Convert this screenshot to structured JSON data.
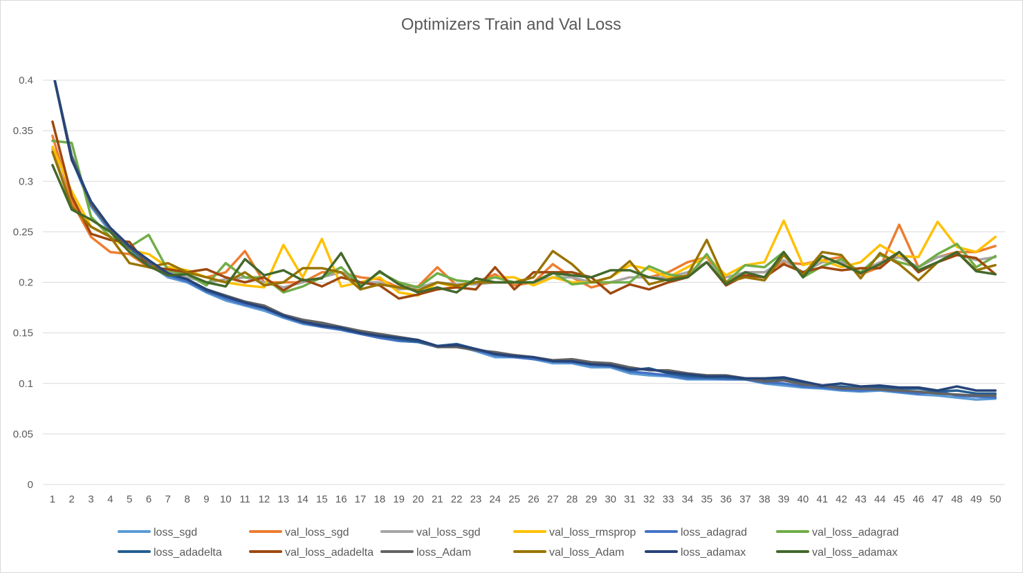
{
  "chart_data": {
    "type": "line",
    "title": "Optimizers Train and Val Loss",
    "xlabel": "",
    "ylabel": "",
    "x": [
      1,
      2,
      3,
      4,
      5,
      6,
      7,
      8,
      9,
      10,
      11,
      12,
      13,
      14,
      15,
      16,
      17,
      18,
      19,
      20,
      21,
      22,
      23,
      24,
      25,
      26,
      27,
      28,
      29,
      30,
      31,
      32,
      33,
      34,
      35,
      36,
      37,
      38,
      39,
      40,
      41,
      42,
      43,
      44,
      45,
      46,
      47,
      48,
      49,
      50
    ],
    "ylim": [
      0,
      0.4
    ],
    "yticks": [
      "0",
      "0.05",
      "0.1",
      "0.15",
      "0.2",
      "0.25",
      "0.3",
      "0.35",
      "0.4"
    ],
    "grid": true,
    "legend_position": "bottom",
    "series": [
      {
        "name": "loss_sgd",
        "color": "#5b9bd5",
        "values": [
          0.41,
          0.322,
          0.275,
          0.25,
          0.232,
          0.218,
          0.205,
          0.2,
          0.19,
          0.182,
          0.177,
          0.172,
          0.165,
          0.159,
          0.156,
          0.153,
          0.149,
          0.146,
          0.142,
          0.141,
          0.137,
          0.137,
          0.132,
          0.126,
          0.126,
          0.124,
          0.12,
          0.12,
          0.116,
          0.116,
          0.11,
          0.108,
          0.107,
          0.104,
          0.104,
          0.104,
          0.104,
          0.1,
          0.098,
          0.096,
          0.095,
          0.093,
          0.092,
          0.093,
          0.091,
          0.089,
          0.088,
          0.086,
          0.084,
          0.085
        ]
      },
      {
        "name": "val_loss_sgd",
        "color": "#ed7d31",
        "values": [
          0.345,
          0.28,
          0.245,
          0.23,
          0.228,
          0.215,
          0.21,
          0.21,
          0.205,
          0.21,
          0.231,
          0.2,
          0.2,
          0.2,
          0.21,
          0.21,
          0.205,
          0.203,
          0.195,
          0.196,
          0.215,
          0.197,
          0.2,
          0.208,
          0.197,
          0.2,
          0.218,
          0.205,
          0.195,
          0.2,
          0.205,
          0.205,
          0.21,
          0.22,
          0.225,
          0.2,
          0.21,
          0.21,
          0.22,
          0.218,
          0.222,
          0.225,
          0.208,
          0.215,
          0.257,
          0.215,
          0.225,
          0.23,
          0.23,
          0.236
        ]
      },
      {
        "name": "val_loss_sgd",
        "color": "#a5a5a5",
        "values": [
          0.332,
          0.275,
          0.255,
          0.245,
          0.235,
          0.218,
          0.21,
          0.205,
          0.2,
          0.203,
          0.205,
          0.2,
          0.195,
          0.2,
          0.205,
          0.21,
          0.2,
          0.2,
          0.193,
          0.195,
          0.2,
          0.198,
          0.198,
          0.2,
          0.2,
          0.2,
          0.205,
          0.205,
          0.2,
          0.2,
          0.205,
          0.205,
          0.205,
          0.21,
          0.22,
          0.205,
          0.21,
          0.21,
          0.222,
          0.21,
          0.22,
          0.22,
          0.21,
          0.22,
          0.225,
          0.215,
          0.225,
          0.228,
          0.222,
          0.225
        ]
      },
      {
        "name": "val_loss_rmsprop",
        "color": "#ffc000",
        "values": [
          0.334,
          0.29,
          0.255,
          0.245,
          0.232,
          0.228,
          0.215,
          0.212,
          0.205,
          0.2,
          0.197,
          0.195,
          0.237,
          0.205,
          0.243,
          0.196,
          0.2,
          0.205,
          0.19,
          0.187,
          0.2,
          0.195,
          0.2,
          0.205,
          0.205,
          0.197,
          0.205,
          0.2,
          0.2,
          0.205,
          0.217,
          0.213,
          0.205,
          0.215,
          0.226,
          0.207,
          0.217,
          0.22,
          0.261,
          0.217,
          0.222,
          0.215,
          0.22,
          0.237,
          0.226,
          0.225,
          0.26,
          0.235,
          0.23,
          0.245
        ]
      },
      {
        "name": "loss_adagrad",
        "color": "#4472c4",
        "values": [
          0.41,
          0.323,
          0.277,
          0.252,
          0.234,
          0.219,
          0.207,
          0.201,
          0.191,
          0.184,
          0.178,
          0.174,
          0.166,
          0.16,
          0.156,
          0.153,
          0.149,
          0.145,
          0.142,
          0.141,
          0.136,
          0.137,
          0.133,
          0.128,
          0.126,
          0.124,
          0.122,
          0.121,
          0.118,
          0.117,
          0.112,
          0.11,
          0.108,
          0.105,
          0.105,
          0.104,
          0.104,
          0.101,
          0.1,
          0.097,
          0.096,
          0.094,
          0.093,
          0.094,
          0.092,
          0.09,
          0.092,
          0.088,
          0.087,
          0.086
        ]
      },
      {
        "name": "val_loss_adagrad",
        "color": "#70ad47",
        "values": [
          0.34,
          0.338,
          0.265,
          0.245,
          0.235,
          0.247,
          0.212,
          0.208,
          0.197,
          0.219,
          0.205,
          0.205,
          0.19,
          0.196,
          0.205,
          0.215,
          0.197,
          0.21,
          0.2,
          0.195,
          0.209,
          0.202,
          0.2,
          0.205,
          0.2,
          0.2,
          0.21,
          0.198,
          0.2,
          0.2,
          0.2,
          0.216,
          0.208,
          0.205,
          0.228,
          0.2,
          0.217,
          0.215,
          0.23,
          0.205,
          0.216,
          0.223,
          0.21,
          0.227,
          0.22,
          0.215,
          0.228,
          0.238,
          0.215,
          0.226
        ]
      },
      {
        "name": "loss_adadelta",
        "color": "#255e91",
        "values": [
          0.41,
          0.325,
          0.278,
          0.253,
          0.234,
          0.22,
          0.208,
          0.203,
          0.192,
          0.186,
          0.18,
          0.176,
          0.168,
          0.161,
          0.158,
          0.154,
          0.15,
          0.147,
          0.144,
          0.141,
          0.137,
          0.139,
          0.134,
          0.13,
          0.128,
          0.126,
          0.122,
          0.122,
          0.119,
          0.118,
          0.113,
          0.115,
          0.11,
          0.107,
          0.106,
          0.106,
          0.104,
          0.104,
          0.105,
          0.1,
          0.097,
          0.097,
          0.095,
          0.096,
          0.095,
          0.095,
          0.092,
          0.093,
          0.09,
          0.09
        ]
      },
      {
        "name": "val_loss_adadelta",
        "color": "#9e480e",
        "values": [
          0.359,
          0.285,
          0.248,
          0.242,
          0.24,
          0.215,
          0.213,
          0.21,
          0.213,
          0.205,
          0.2,
          0.205,
          0.192,
          0.203,
          0.196,
          0.205,
          0.2,
          0.197,
          0.184,
          0.188,
          0.193,
          0.195,
          0.193,
          0.215,
          0.193,
          0.21,
          0.21,
          0.21,
          0.205,
          0.189,
          0.198,
          0.193,
          0.2,
          0.205,
          0.22,
          0.197,
          0.207,
          0.205,
          0.218,
          0.21,
          0.215,
          0.212,
          0.214,
          0.214,
          0.23,
          0.21,
          0.22,
          0.227,
          0.224,
          0.208
        ]
      },
      {
        "name": "loss_Adam",
        "color": "#636363",
        "values": [
          0.41,
          0.324,
          0.277,
          0.253,
          0.235,
          0.22,
          0.209,
          0.203,
          0.193,
          0.187,
          0.181,
          0.177,
          0.168,
          0.163,
          0.16,
          0.156,
          0.152,
          0.149,
          0.146,
          0.143,
          0.136,
          0.136,
          0.133,
          0.131,
          0.128,
          0.126,
          0.123,
          0.124,
          0.121,
          0.12,
          0.116,
          0.113,
          0.113,
          0.11,
          0.108,
          0.108,
          0.105,
          0.102,
          0.103,
          0.099,
          0.098,
          0.095,
          0.095,
          0.094,
          0.093,
          0.092,
          0.09,
          0.089,
          0.088,
          0.088
        ]
      },
      {
        "name": "val_loss_Adam",
        "color": "#997300",
        "values": [
          0.329,
          0.275,
          0.255,
          0.245,
          0.219,
          0.215,
          0.219,
          0.21,
          0.205,
          0.2,
          0.21,
          0.197,
          0.2,
          0.214,
          0.214,
          0.21,
          0.193,
          0.198,
          0.195,
          0.192,
          0.2,
          0.197,
          0.2,
          0.2,
          0.2,
          0.205,
          0.231,
          0.218,
          0.2,
          0.205,
          0.221,
          0.198,
          0.203,
          0.207,
          0.242,
          0.2,
          0.205,
          0.202,
          0.227,
          0.207,
          0.23,
          0.227,
          0.204,
          0.229,
          0.218,
          0.202,
          0.22,
          0.23,
          0.212,
          0.217
        ]
      },
      {
        "name": "loss_adamax",
        "color": "#264478",
        "values": [
          0.41,
          0.321,
          0.28,
          0.254,
          0.236,
          0.222,
          0.209,
          0.203,
          0.193,
          0.186,
          0.18,
          0.175,
          0.167,
          0.161,
          0.157,
          0.155,
          0.15,
          0.147,
          0.145,
          0.143,
          0.137,
          0.138,
          0.134,
          0.129,
          0.127,
          0.126,
          0.122,
          0.122,
          0.119,
          0.118,
          0.114,
          0.114,
          0.111,
          0.109,
          0.107,
          0.107,
          0.105,
          0.105,
          0.106,
          0.102,
          0.098,
          0.1,
          0.097,
          0.098,
          0.096,
          0.096,
          0.093,
          0.097,
          0.093,
          0.093
        ]
      },
      {
        "name": "val_loss_adamax",
        "color": "#43682b",
        "values": [
          0.316,
          0.272,
          0.262,
          0.25,
          0.23,
          0.216,
          0.207,
          0.208,
          0.2,
          0.196,
          0.223,
          0.207,
          0.212,
          0.202,
          0.204,
          0.229,
          0.195,
          0.211,
          0.198,
          0.19,
          0.195,
          0.19,
          0.204,
          0.2,
          0.2,
          0.2,
          0.209,
          0.207,
          0.205,
          0.212,
          0.212,
          0.205,
          0.202,
          0.205,
          0.22,
          0.198,
          0.21,
          0.205,
          0.23,
          0.205,
          0.226,
          0.218,
          0.209,
          0.218,
          0.23,
          0.212,
          0.22,
          0.23,
          0.211,
          0.208
        ]
      }
    ]
  }
}
